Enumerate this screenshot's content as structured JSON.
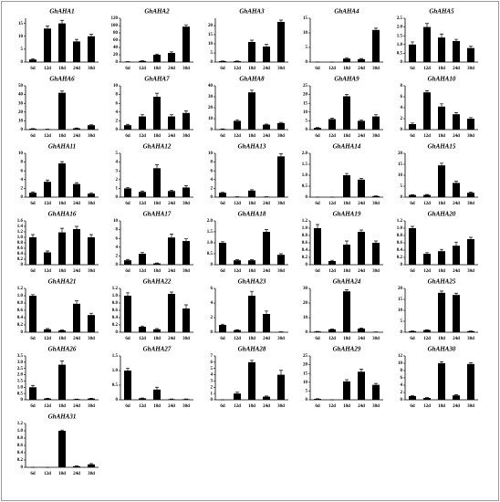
{
  "chart_data": [
    {
      "type": "bar",
      "title": "GhAHA1",
      "categories": [
        "6d",
        "12d",
        "18d",
        "24d",
        "30d"
      ],
      "values": [
        1,
        13,
        15,
        8,
        10
      ],
      "errors": [
        0.3,
        1,
        1.2,
        0.8,
        0.8
      ],
      "ylim": [
        0,
        17
      ],
      "yticks": [
        0,
        5,
        10,
        15
      ],
      "color": "#000000"
    },
    {
      "type": "bar",
      "title": "GhAHA2",
      "categories": [
        "6d",
        "12d",
        "18d",
        "24d",
        "30d"
      ],
      "values": [
        1,
        3,
        20,
        25,
        97
      ],
      "errors": [
        0.2,
        0.5,
        2,
        3,
        5
      ],
      "ylim": [
        0,
        120
      ],
      "yticks": [
        0,
        20,
        40,
        60,
        80,
        100,
        120
      ],
      "color": "#000000"
    },
    {
      "type": "bar",
      "title": "GhAHA3",
      "categories": [
        "6d",
        "12d",
        "18d",
        "24d",
        "30d"
      ],
      "values": [
        0.5,
        0.5,
        11,
        8.5,
        22
      ],
      "errors": [
        0.1,
        0.1,
        1,
        1.2,
        1
      ],
      "ylim": [
        0,
        24
      ],
      "yticks": [
        0,
        5,
        10,
        15,
        20
      ],
      "color": "#000000"
    },
    {
      "type": "bar",
      "title": "GhAHA4",
      "categories": [
        "6d",
        "12d",
        "18d",
        "24d",
        "30d"
      ],
      "values": [
        0,
        0,
        1.2,
        1,
        11
      ],
      "errors": [
        0,
        0,
        0.3,
        0.2,
        0.6
      ],
      "ylim": [
        0,
        15
      ],
      "yticks": [
        0,
        5,
        10,
        15
      ],
      "color": "#000000"
    },
    {
      "type": "bar",
      "title": "GhAHA5",
      "categories": [
        "6d",
        "12d",
        "18d",
        "24d",
        "30d"
      ],
      "values": [
        1,
        2,
        1.4,
        1.2,
        0.8
      ],
      "errors": [
        0.15,
        0.2,
        0.2,
        0.1,
        0.1
      ],
      "ylim": [
        0,
        2.5
      ],
      "yticks": [
        0,
        0.5,
        {
          "value": 1,
          "label": "1.0"
        },
        1.5,
        {
          "value": 2,
          "label": "2.0"
        },
        2.5
      ],
      "color": "#000000"
    },
    {
      "type": "bar",
      "title": "GhAHA6",
      "categories": [
        "6d",
        "12d",
        "18d",
        "24d",
        "30d"
      ],
      "values": [
        1,
        0.5,
        42,
        1.5,
        5
      ],
      "errors": [
        0.2,
        0.1,
        2,
        0.3,
        0.5
      ],
      "ylim": [
        0,
        50
      ],
      "yticks": [
        0,
        10,
        20,
        30,
        40,
        50
      ],
      "color": "#000000"
    },
    {
      "type": "bar",
      "title": "GhAHA7",
      "categories": [
        "6d",
        "12d",
        "18d",
        "24d",
        "30d"
      ],
      "values": [
        1,
        3,
        7.5,
        3,
        3.8
      ],
      "errors": [
        0.2,
        0.4,
        0.8,
        0.4,
        0.5
      ],
      "ylim": [
        0,
        10
      ],
      "yticks": [
        0,
        2,
        4,
        6,
        8,
        10
      ],
      "color": "#000000"
    },
    {
      "type": "bar",
      "title": "GhAHA8",
      "categories": [
        "6d",
        "12d",
        "18d",
        "24d",
        "30d"
      ],
      "values": [
        0.5,
        8,
        34,
        4.5,
        6
      ],
      "errors": [
        0.1,
        1,
        2,
        0.5,
        0.6
      ],
      "ylim": [
        0,
        40
      ],
      "yticks": [
        0,
        10,
        20,
        30,
        40
      ],
      "color": "#000000"
    },
    {
      "type": "bar",
      "title": "GhAHA9",
      "categories": [
        "6d",
        "12d",
        "18d",
        "24d",
        "30d"
      ],
      "values": [
        1,
        6,
        19,
        5,
        7.5
      ],
      "errors": [
        0.2,
        0.5,
        1,
        0.5,
        1
      ],
      "ylim": [
        0,
        25
      ],
      "yticks": [
        0,
        5,
        10,
        15,
        20,
        25
      ],
      "color": "#000000"
    },
    {
      "type": "bar",
      "title": "GhAHA10",
      "categories": [
        "6d",
        "12d",
        "18d",
        "24d",
        "30d"
      ],
      "values": [
        1,
        6.8,
        4.2,
        2.8,
        2
      ],
      "errors": [
        0.2,
        0.3,
        0.5,
        0.3,
        0.2
      ],
      "ylim": [
        0,
        8
      ],
      "yticks": [
        0,
        2,
        4,
        6,
        8
      ],
      "color": "#000000"
    },
    {
      "type": "bar",
      "title": "GhAHA11",
      "categories": [
        "6d",
        "12d",
        "18d",
        "24d",
        "30d"
      ],
      "values": [
        1,
        3.5,
        7.7,
        3,
        0.8
      ],
      "errors": [
        0.2,
        0.4,
        0.4,
        0.3,
        0.2
      ],
      "ylim": [
        0,
        10
      ],
      "yticks": [
        0,
        2,
        4,
        6,
        8,
        10
      ],
      "color": "#000000"
    },
    {
      "type": "bar",
      "title": "GhAHA12",
      "categories": [
        "6d",
        "12d",
        "18d",
        "24d",
        "30d"
      ],
      "values": [
        1,
        0.6,
        3.3,
        0.7,
        1.1
      ],
      "errors": [
        0.1,
        0.1,
        0.4,
        0.1,
        0.2
      ],
      "ylim": [
        0,
        5
      ],
      "yticks": [
        0,
        1,
        2,
        3,
        4,
        5
      ],
      "color": "#000000"
    },
    {
      "type": "bar",
      "title": "GhAHA13",
      "categories": [
        "6d",
        "12d",
        "18d",
        "24d",
        "30d"
      ],
      "values": [
        1,
        0.1,
        1.5,
        0.1,
        9.3
      ],
      "errors": [
        0.1,
        0,
        0.2,
        0,
        0.6
      ],
      "ylim": [
        0,
        10
      ],
      "yticks": [
        0,
        2,
        4,
        6,
        8,
        10
      ],
      "color": "#000000"
    },
    {
      "type": "bar",
      "title": "GhAHA14",
      "categories": [
        "6d",
        "12d",
        "18d",
        "24d",
        "30d"
      ],
      "values": [
        0,
        0,
        1,
        0.8,
        0.05
      ],
      "errors": [
        0,
        0,
        0.08,
        0.06,
        0.01
      ],
      "ylim": [
        0,
        2
      ],
      "yticks": [
        0,
        0.5,
        {
          "value": 1,
          "label": "1.0"
        },
        1.5,
        {
          "value": 2,
          "label": "2.0"
        }
      ],
      "color": "#000000"
    },
    {
      "type": "bar",
      "title": "GhAHA15",
      "categories": [
        "6d",
        "12d",
        "18d",
        "24d",
        "30d"
      ],
      "values": [
        1,
        1,
        14.5,
        6.5,
        2
      ],
      "errors": [
        0.1,
        0.2,
        1,
        0.8,
        0.3
      ],
      "ylim": [
        0,
        20
      ],
      "yticks": [
        0,
        5,
        10,
        15,
        20
      ],
      "color": "#000000"
    },
    {
      "type": "bar",
      "title": "GhAHA16",
      "categories": [
        "6d",
        "12d",
        "18d",
        "24d",
        "30d"
      ],
      "values": [
        1,
        0.45,
        1.18,
        1.3,
        1
      ],
      "errors": [
        0.1,
        0.05,
        0.15,
        0.1,
        0.1
      ],
      "ylim": [
        0,
        1.6
      ],
      "yticks": [
        0,
        0.2,
        0.4,
        0.6,
        0.8,
        {
          "value": 1,
          "label": "1.0"
        },
        1.2,
        1.4,
        1.6
      ],
      "color": "#000000"
    },
    {
      "type": "bar",
      "title": "GhAHA17",
      "categories": [
        "6d",
        "12d",
        "18d",
        "24d",
        "30d"
      ],
      "values": [
        1,
        2.5,
        0.3,
        6.2,
        5.4
      ],
      "errors": [
        0.2,
        0.3,
        0.1,
        0.8,
        0.5
      ],
      "ylim": [
        0,
        10
      ],
      "yticks": [
        0,
        2,
        4,
        6,
        8,
        10
      ],
      "color": "#000000"
    },
    {
      "type": "bar",
      "title": "GhAHA18",
      "categories": [
        "6d",
        "12d",
        "18d",
        "24d",
        "30d"
      ],
      "values": [
        1,
        0.2,
        0.2,
        1.5,
        0.45
      ],
      "errors": [
        0.05,
        0.03,
        0.03,
        0.1,
        0.05
      ],
      "ylim": [
        0,
        2
      ],
      "yticks": [
        0,
        0.5,
        {
          "value": 1,
          "label": "1.0"
        },
        1.5,
        {
          "value": 2,
          "label": "2.0"
        }
      ],
      "color": "#000000"
    },
    {
      "type": "bar",
      "title": "GhAHA19",
      "categories": [
        "6d",
        "12d",
        "18d",
        "24d",
        "30d"
      ],
      "values": [
        1,
        0.1,
        0.55,
        0.9,
        0.6
      ],
      "errors": [
        0.1,
        0.02,
        0.1,
        0.05,
        0.05
      ],
      "ylim": [
        0,
        1.2
      ],
      "yticks": [
        0,
        0.2,
        0.4,
        0.6,
        0.8,
        {
          "value": 1,
          "label": "1.0"
        },
        1.2
      ],
      "color": "#000000"
    },
    {
      "type": "bar",
      "title": "GhAHA20",
      "categories": [
        "6d",
        "12d",
        "18d",
        "24d",
        "30d"
      ],
      "values": [
        1,
        0.3,
        0.37,
        0.52,
        0.7
      ],
      "errors": [
        0.05,
        0.03,
        0.05,
        0.1,
        0.05
      ],
      "ylim": [
        0,
        1.2
      ],
      "yticks": [
        0,
        0.2,
        0.4,
        0.6,
        0.8,
        {
          "value": 1,
          "label": "1.0"
        },
        1.2
      ],
      "color": "#000000"
    },
    {
      "type": "bar",
      "title": "GhAHA21",
      "categories": [
        "6d",
        "12d",
        "18d",
        "24d",
        "30d"
      ],
      "values": [
        1,
        0.08,
        0.05,
        0.78,
        0.47
      ],
      "errors": [
        0.03,
        0.02,
        0.01,
        0.08,
        0.05
      ],
      "ylim": [
        0,
        1.2
      ],
      "yticks": [
        0,
        0.2,
        0.4,
        0.6,
        0.8,
        {
          "value": 1,
          "label": "1.0"
        },
        1.2
      ],
      "color": "#000000"
    },
    {
      "type": "bar",
      "title": "GhAHA22",
      "categories": [
        "6d",
        "12d",
        "18d",
        "24d",
        "30d"
      ],
      "values": [
        1,
        0.15,
        0.08,
        1.05,
        0.65
      ],
      "errors": [
        0.08,
        0.02,
        0.02,
        0.05,
        0.1
      ],
      "ylim": [
        0,
        1.2
      ],
      "yticks": [
        0,
        0.2,
        0.4,
        0.6,
        0.8,
        {
          "value": 1,
          "label": "1.0"
        },
        1.2
      ],
      "color": "#000000"
    },
    {
      "type": "bar",
      "title": "GhAHA23",
      "categories": [
        "6d",
        "12d",
        "18d",
        "24d",
        "30d"
      ],
      "values": [
        1,
        0.3,
        5,
        2.5,
        0.05
      ],
      "errors": [
        0.1,
        0.05,
        0.6,
        0.4,
        0.01
      ],
      "ylim": [
        0,
        6
      ],
      "yticks": [
        0,
        2,
        4,
        6
      ],
      "color": "#000000"
    },
    {
      "type": "bar",
      "title": "GhAHA24",
      "categories": [
        "6d",
        "12d",
        "18d",
        "24d",
        "30d"
      ],
      "values": [
        0.5,
        2,
        28,
        2.5,
        0.2
      ],
      "errors": [
        0.1,
        0.2,
        1,
        0.3,
        0.05
      ],
      "ylim": [
        0,
        30
      ],
      "yticks": [
        0,
        10,
        20,
        30
      ],
      "color": "#000000"
    },
    {
      "type": "bar",
      "title": "GhAHA25",
      "categories": [
        "6d",
        "12d",
        "18d",
        "24d",
        "30d"
      ],
      "values": [
        0.5,
        1,
        18,
        17,
        0.5
      ],
      "errors": [
        0.1,
        0.1,
        0.8,
        0.8,
        0.1
      ],
      "ylim": [
        0,
        20
      ],
      "yticks": [
        0,
        5,
        10,
        15,
        20
      ],
      "color": "#000000"
    },
    {
      "type": "bar",
      "title": "GhAHA26",
      "categories": [
        "6d",
        "12d",
        "18d",
        "24d",
        "30d"
      ],
      "values": [
        1,
        0.1,
        2.8,
        0.05,
        0.1
      ],
      "errors": [
        0.15,
        0.02,
        0.3,
        0.01,
        0.02
      ],
      "ylim": [
        0,
        3.5
      ],
      "yticks": [
        0,
        0.5,
        {
          "value": 1,
          "label": "1.0"
        },
        1.5,
        {
          "value": 2,
          "label": "2.0"
        },
        2.5,
        {
          "value": 3,
          "label": "3.0"
        },
        3.5
      ],
      "color": "#000000"
    },
    {
      "type": "bar",
      "title": "GhAHA27",
      "categories": [
        "6d",
        "12d",
        "18d",
        "24d",
        "30d"
      ],
      "values": [
        1,
        0.05,
        0.35,
        0.02,
        0.02
      ],
      "errors": [
        0.08,
        0.01,
        0.08,
        0.01,
        0.01
      ],
      "ylim": [
        0,
        1.5
      ],
      "yticks": [
        0,
        0.5,
        {
          "value": 1,
          "label": "1.0"
        },
        1.5
      ],
      "color": "#000000"
    },
    {
      "type": "bar",
      "title": "GhAHA28",
      "categories": [
        "6d",
        "12d",
        "18d",
        "24d",
        "30d"
      ],
      "values": [
        0,
        1,
        6,
        0.5,
        4
      ],
      "errors": [
        0,
        0.2,
        0.3,
        0.1,
        0.7
      ],
      "ylim": [
        0,
        7
      ],
      "yticks": [
        0,
        1,
        2,
        3,
        4,
        5,
        6,
        7
      ],
      "color": "#000000"
    },
    {
      "type": "bar",
      "title": "GhAHA29",
      "categories": [
        "6d",
        "12d",
        "18d",
        "24d",
        "30d"
      ],
      "values": [
        0.5,
        0,
        10.5,
        16,
        8.5
      ],
      "errors": [
        0.1,
        0,
        1,
        1.5,
        0.8
      ],
      "ylim": [
        0,
        25
      ],
      "yticks": [
        0,
        5,
        10,
        15,
        20,
        25
      ],
      "color": "#000000"
    },
    {
      "type": "bar",
      "title": "GhAHA30",
      "categories": [
        "6d",
        "12d",
        "18d",
        "24d",
        "30d"
      ],
      "values": [
        1,
        0.5,
        10,
        1.2,
        9.8
      ],
      "errors": [
        0.1,
        0.1,
        0.4,
        0.2,
        0.3
      ],
      "ylim": [
        0,
        12
      ],
      "yticks": [
        0,
        2,
        4,
        6,
        8,
        10,
        12
      ],
      "color": "#000000"
    },
    {
      "type": "bar",
      "title": "GhAHA31",
      "categories": [
        "6d",
        "12d",
        "18d",
        "24d",
        "30d"
      ],
      "values": [
        0,
        0,
        1,
        0.03,
        0.08
      ],
      "errors": [
        0,
        0,
        0.02,
        0.01,
        0.02
      ],
      "ylim": [
        0,
        1.2
      ],
      "yticks": [
        0,
        0.2,
        0.4,
        0.6,
        0.8,
        {
          "value": 1,
          "label": "1.0"
        },
        1.2
      ],
      "color": "#000000"
    }
  ]
}
